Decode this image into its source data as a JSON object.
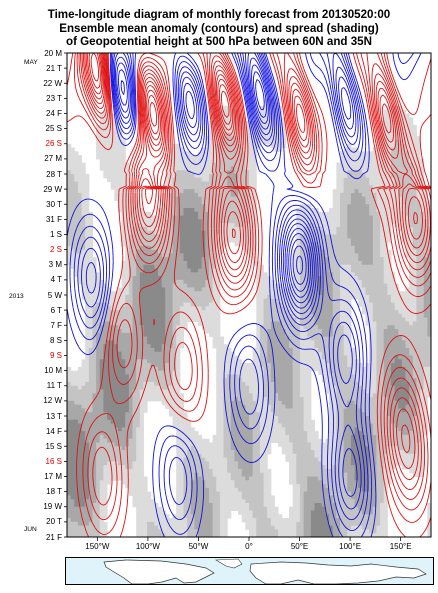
{
  "chart_data": {
    "type": "time-longitude contour",
    "title_lines": [
      "Time-longitude diagram of monthly forecast  from 20130520:00",
      "Ensemble mean anomaly (contours) and spread (shading)",
      "of Geopotential height at 500 hPa between 60N and 35N"
    ],
    "y_ticks": [
      {
        "label": "20 M",
        "weekend": false
      },
      {
        "label": "21 T",
        "weekend": false
      },
      {
        "label": "22 W",
        "weekend": false
      },
      {
        "label": "23 T",
        "weekend": false
      },
      {
        "label": "24 F",
        "weekend": false
      },
      {
        "label": "25 S",
        "weekend": false
      },
      {
        "label": "26 S",
        "weekend": true
      },
      {
        "label": "27 M",
        "weekend": false
      },
      {
        "label": "28 T",
        "weekend": false
      },
      {
        "label": "29 W",
        "weekend": false
      },
      {
        "label": "30 T",
        "weekend": false
      },
      {
        "label": "31 F",
        "weekend": false
      },
      {
        "label": "1 S",
        "weekend": false
      },
      {
        "label": "2 S",
        "weekend": true
      },
      {
        "label": "3 M",
        "weekend": false
      },
      {
        "label": "4 T",
        "weekend": false
      },
      {
        "label": "5 W",
        "weekend": false
      },
      {
        "label": "6 T",
        "weekend": false
      },
      {
        "label": "7 F",
        "weekend": false
      },
      {
        "label": "8 S",
        "weekend": false
      },
      {
        "label": "9 S",
        "weekend": true
      },
      {
        "label": "10 M",
        "weekend": false
      },
      {
        "label": "11 T",
        "weekend": false
      },
      {
        "label": "12 W",
        "weekend": false
      },
      {
        "label": "13 T",
        "weekend": false
      },
      {
        "label": "14 F",
        "weekend": false
      },
      {
        "label": "15 S",
        "weekend": false
      },
      {
        "label": "16 S",
        "weekend": true
      },
      {
        "label": "17 M",
        "weekend": false
      },
      {
        "label": "18 T",
        "weekend": false
      },
      {
        "label": "19 W",
        "weekend": false
      },
      {
        "label": "20 T",
        "weekend": false
      },
      {
        "label": "21 F",
        "weekend": false
      }
    ],
    "month_labels": {
      "may": "MAY",
      "jun": "JUN"
    },
    "year_label": "2013",
    "x_ticks": [
      {
        "label": "150°W",
        "lon": -150
      },
      {
        "label": "100°W",
        "lon": -100
      },
      {
        "label": "50°W",
        "lon": -50
      },
      {
        "label": "0°",
        "lon": 0
      },
      {
        "label": "50°E",
        "lon": 50
      },
      {
        "label": "100°E",
        "lon": 100
      },
      {
        "label": "150°E",
        "lon": 150
      }
    ],
    "x_range": [
      -180,
      180
    ],
    "contour_colors": {
      "positive": "#e01010",
      "negative": "#1010e0"
    },
    "shading_colors": [
      "#dcdcdc",
      "#c4c4c4",
      "#a8a8a8",
      "#8a8a8a"
    ],
    "anomaly_centers": [
      {
        "lon": -150,
        "day": 1.5,
        "sign": "pos",
        "amp": 7
      },
      {
        "lon": -125,
        "day": 2.5,
        "sign": "neg",
        "amp": 5
      },
      {
        "lon": -95,
        "day": 4,
        "sign": "pos",
        "amp": 7
      },
      {
        "lon": -60,
        "day": 3,
        "sign": "neg",
        "amp": 5
      },
      {
        "lon": -25,
        "day": 3,
        "sign": "pos",
        "amp": 8
      },
      {
        "lon": 10,
        "day": 2.5,
        "sign": "neg",
        "amp": 8
      },
      {
        "lon": 50,
        "day": 4,
        "sign": "pos",
        "amp": 7
      },
      {
        "lon": 95,
        "day": 3,
        "sign": "neg",
        "amp": 6
      },
      {
        "lon": 135,
        "day": 4,
        "sign": "pos",
        "amp": 7
      },
      {
        "lon": -100,
        "day": 10,
        "sign": "pos",
        "amp": 6
      },
      {
        "lon": -15,
        "day": 12,
        "sign": "pos",
        "amp": 6
      },
      {
        "lon": 50,
        "day": 14,
        "sign": "neg",
        "amp": 8
      },
      {
        "lon": 165,
        "day": 11,
        "sign": "pos",
        "amp": 6
      },
      {
        "lon": -155,
        "day": 15,
        "sign": "neg",
        "amp": 4
      },
      {
        "lon": -125,
        "day": 19,
        "sign": "pos",
        "amp": 3
      },
      {
        "lon": -65,
        "day": 21,
        "sign": "pos",
        "amp": 3
      },
      {
        "lon": 0,
        "day": 22,
        "sign": "neg",
        "amp": 3
      },
      {
        "lon": 95,
        "day": 20,
        "sign": "neg",
        "amp": 4
      },
      {
        "lon": 150,
        "day": 24,
        "sign": "pos",
        "amp": 3
      },
      {
        "lon": -145,
        "day": 28,
        "sign": "pos",
        "amp": 3
      },
      {
        "lon": -70,
        "day": 28,
        "sign": "neg",
        "amp": 3
      },
      {
        "lon": 100,
        "day": 28,
        "sign": "neg",
        "amp": 4
      },
      {
        "lon": 160,
        "day": 27,
        "sign": "pos",
        "amp": 3
      }
    ]
  }
}
